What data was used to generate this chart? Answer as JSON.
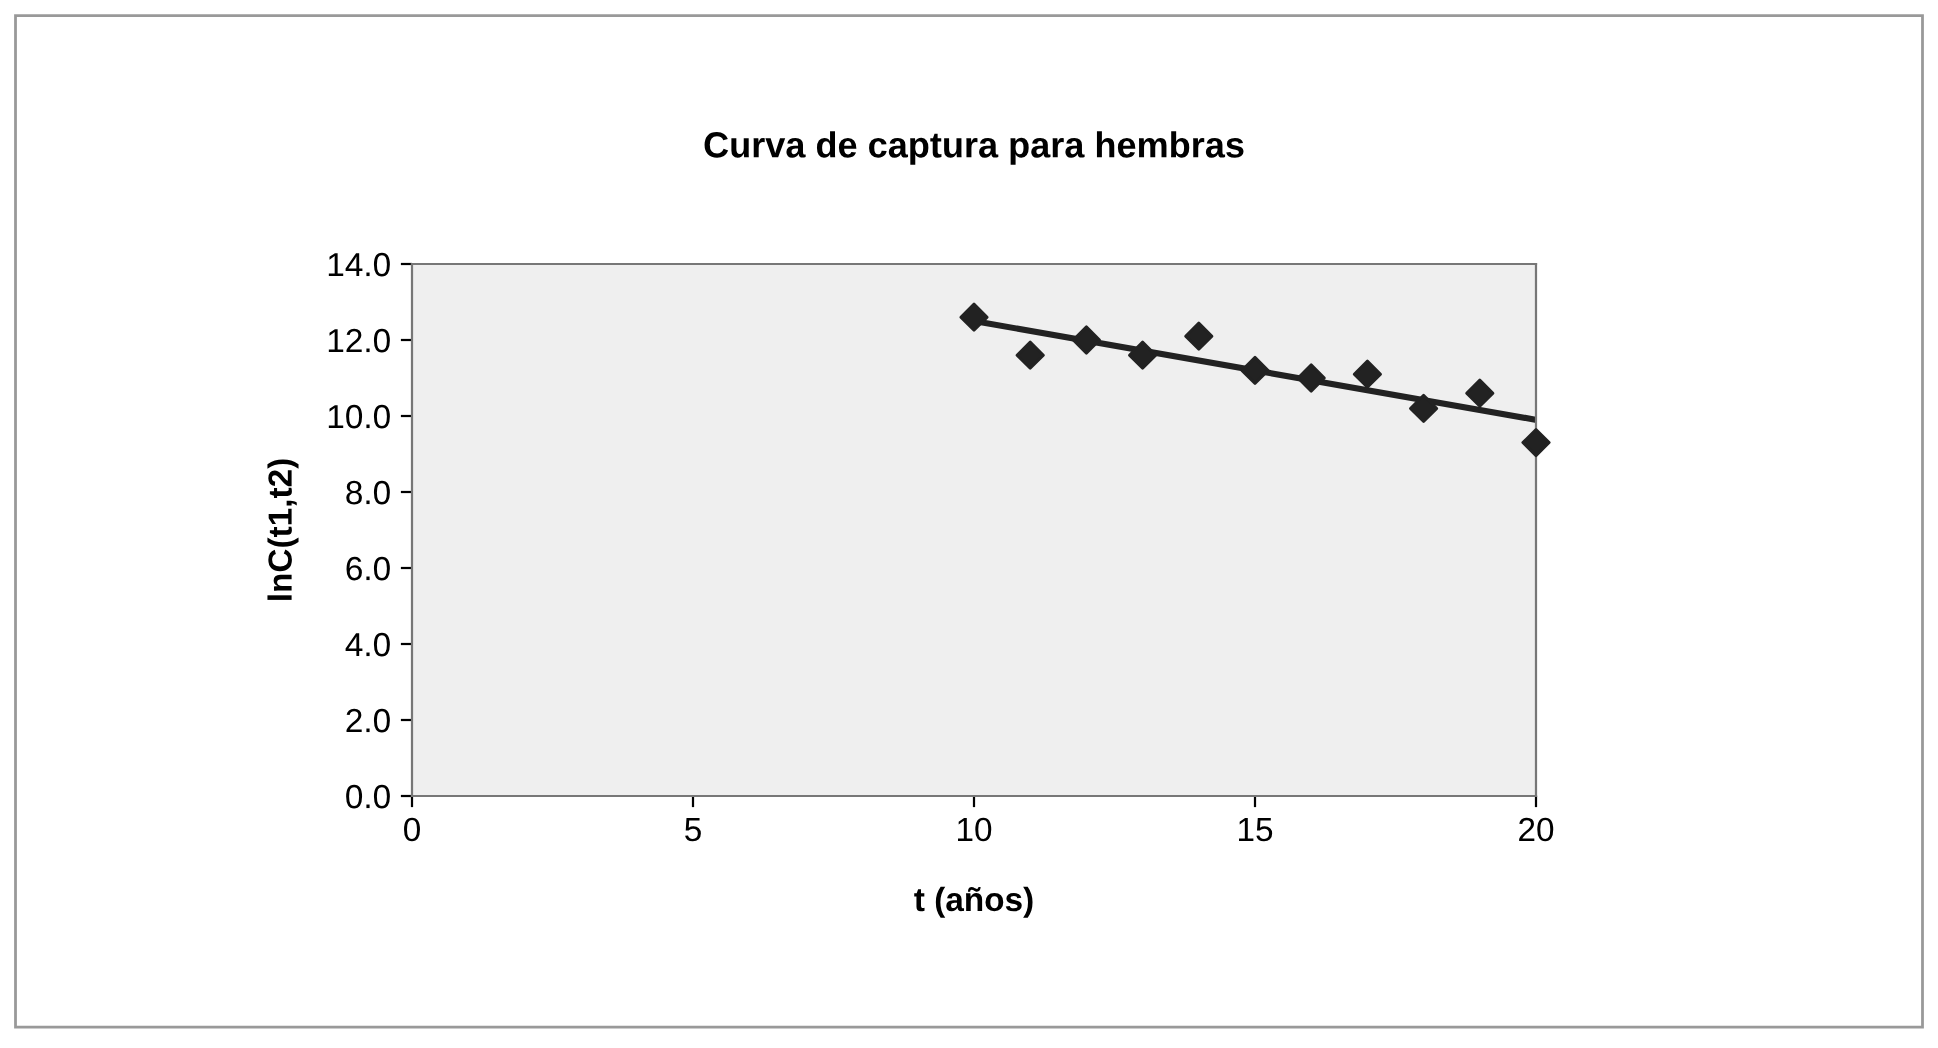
{
  "chart_data": {
    "type": "scatter",
    "title": "Curva de captura para hembras",
    "xlabel": "t (años)",
    "ylabel": "lnC(t1,t2)",
    "xlim": [
      0,
      20
    ],
    "xticks": [
      0,
      5,
      10,
      15,
      20
    ],
    "ylim": [
      0,
      14
    ],
    "yticks": [
      {
        "value": 0,
        "label": "0.0"
      },
      {
        "value": 2,
        "label": "2.0"
      },
      {
        "value": 4,
        "label": "4.0"
      },
      {
        "value": 6,
        "label": "6.0"
      },
      {
        "value": 8,
        "label": "8.0"
      },
      {
        "value": 10,
        "label": "10.0"
      },
      {
        "value": 12,
        "label": "12.0"
      },
      {
        "value": 14,
        "label": "14.0"
      }
    ],
    "grid": false,
    "legend": false,
    "series": [
      {
        "color": "#222222",
        "marker": "diamond",
        "x": [
          10,
          11,
          12,
          13,
          14,
          15,
          16,
          17,
          18,
          19,
          20
        ],
        "values": [
          12.6,
          11.6,
          12.0,
          11.6,
          12.1,
          11.2,
          11.0,
          11.1,
          10.2,
          10.6,
          9.3
        ]
      },
      {
        "type": "line",
        "color": "#222222",
        "marker": "none",
        "line_style": "solid",
        "x": [
          10,
          20
        ],
        "values": [
          12.5,
          9.9
        ]
      }
    ]
  }
}
